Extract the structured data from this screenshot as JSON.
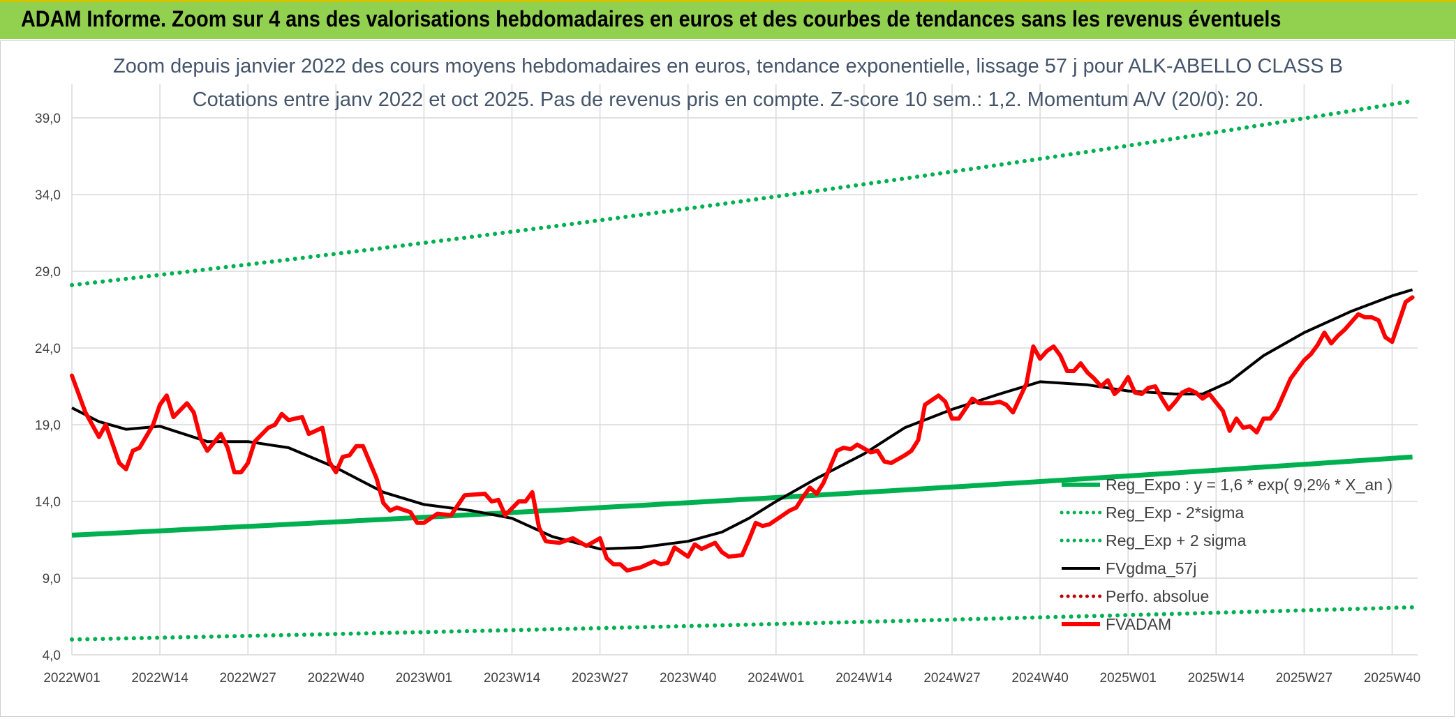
{
  "banner": {
    "title": "ADAM Informe. Zoom sur 4 ans des valorisations hebdomadaires en euros et des courbes de tendances sans les revenus éventuels"
  },
  "colors": {
    "banner_bg": "#92d050",
    "reg_green": "#00b050",
    "price_red": "#ff0000",
    "ma_black": "#000000",
    "perf_red": "#c00000",
    "grid": "#d9d9d9"
  },
  "chart_data": {
    "type": "line",
    "title_line1": "Zoom depuis janvier 2022 des cours moyens hebdomadaires en euros, tendance exponentielle, lissage 57 j pour ALK-ABELLO CLASS B",
    "title_line2": "Cotations entre janv 2022 et oct 2025. Pas de revenus pris en compte. Z-score 10 sem.: 1,2. Momentum A/V (20/0): 20.",
    "ylim": [
      4,
      40
    ],
    "yticks": [
      4,
      9,
      14,
      19,
      24,
      29,
      34,
      39
    ],
    "ytick_labels": [
      "4,0",
      "9,0",
      "14,0",
      "19,0",
      "24,0",
      "29,0",
      "34,0",
      "39,0"
    ],
    "week_count": 199,
    "xtick_index": [
      0,
      13,
      26,
      39,
      52,
      65,
      78,
      91,
      104,
      117,
      130,
      143,
      156,
      169,
      182,
      195
    ],
    "xtick_labels": [
      "2022W01",
      "2022W14",
      "2022W27",
      "2022W40",
      "2023W01",
      "2023W14",
      "2023W27",
      "2023W40",
      "2024W01",
      "2024W14",
      "2024W27",
      "2024W40",
      "2025W01",
      "2025W14",
      "2025W27",
      "2025W40"
    ],
    "legend": [
      {
        "label": "Reg_Expo : y = 1,6 * exp( 9,2% *  X_an )",
        "style": "solid",
        "color": "#00b050"
      },
      {
        "label": "Reg_Exp - 2*sigma",
        "style": "dotted",
        "color": "#00b050"
      },
      {
        "label": "Reg_Exp + 2 sigma",
        "style": "dotted",
        "color": "#00b050"
      },
      {
        "label": "FVgdma_57j",
        "style": "solid",
        "color": "#000000"
      },
      {
        "label": "Perfo. absolue",
        "style": "dotted",
        "color": "#c00000"
      },
      {
        "label": "FVADAM",
        "style": "solid",
        "color": "#ff0000"
      }
    ],
    "series": [
      {
        "name": "Reg_Expo",
        "type": "trend",
        "start": 11.8,
        "end": 16.9
      },
      {
        "name": "Reg_Exp + 2 sigma",
        "type": "trend",
        "start": 28.1,
        "end": 40.1
      },
      {
        "name": "Reg_Exp - 2*sigma",
        "type": "trend",
        "start": 5.0,
        "end": 7.1
      },
      {
        "name": "FVgdma_57j",
        "type": "keyframes",
        "points": [
          [
            0,
            20.1
          ],
          [
            4,
            19.2
          ],
          [
            8,
            18.7
          ],
          [
            13,
            18.9
          ],
          [
            20,
            17.9
          ],
          [
            26,
            17.9
          ],
          [
            32,
            17.5
          ],
          [
            39,
            16.2
          ],
          [
            46,
            14.6
          ],
          [
            52,
            13.8
          ],
          [
            59,
            13.4
          ],
          [
            65,
            12.9
          ],
          [
            71,
            11.7
          ],
          [
            78,
            10.9
          ],
          [
            84,
            11.0
          ],
          [
            91,
            11.4
          ],
          [
            96,
            12.0
          ],
          [
            100,
            12.9
          ],
          [
            104,
            14.0
          ],
          [
            110,
            15.5
          ],
          [
            117,
            17.1
          ],
          [
            123,
            18.8
          ],
          [
            130,
            20.0
          ],
          [
            137,
            21.0
          ],
          [
            143,
            21.8
          ],
          [
            150,
            21.6
          ],
          [
            156,
            21.2
          ],
          [
            163,
            21.0
          ],
          [
            167,
            21.0
          ],
          [
            171,
            21.8
          ],
          [
            176,
            23.5
          ],
          [
            182,
            25.0
          ],
          [
            189,
            26.4
          ],
          [
            195,
            27.4
          ],
          [
            198,
            27.8
          ]
        ]
      },
      {
        "name": "FVADAM",
        "type": "keyframes",
        "points": [
          [
            0,
            22.2
          ],
          [
            2,
            19.8
          ],
          [
            4,
            18.2
          ],
          [
            5,
            19.0
          ],
          [
            7,
            16.5
          ],
          [
            8,
            16.1
          ],
          [
            9,
            17.3
          ],
          [
            10,
            17.5
          ],
          [
            12,
            19.0
          ],
          [
            13,
            20.3
          ],
          [
            14,
            20.9
          ],
          [
            15,
            19.5
          ],
          [
            17,
            20.4
          ],
          [
            18,
            19.8
          ],
          [
            19,
            18.1
          ],
          [
            20,
            17.3
          ],
          [
            22,
            18.4
          ],
          [
            23,
            17.5
          ],
          [
            24,
            15.9
          ],
          [
            25,
            15.9
          ],
          [
            26,
            16.5
          ],
          [
            27,
            17.9
          ],
          [
            29,
            18.8
          ],
          [
            30,
            19.0
          ],
          [
            31,
            19.7
          ],
          [
            32,
            19.3
          ],
          [
            34,
            19.5
          ],
          [
            35,
            18.4
          ],
          [
            37,
            18.8
          ],
          [
            38,
            16.6
          ],
          [
            39,
            15.9
          ],
          [
            40,
            16.9
          ],
          [
            41,
            17.0
          ],
          [
            42,
            17.6
          ],
          [
            43,
            17.6
          ],
          [
            45,
            15.5
          ],
          [
            46,
            13.9
          ],
          [
            47,
            13.4
          ],
          [
            48,
            13.6
          ],
          [
            50,
            13.3
          ],
          [
            51,
            12.6
          ],
          [
            52,
            12.6
          ],
          [
            54,
            13.2
          ],
          [
            56,
            13.1
          ],
          [
            58,
            14.4
          ],
          [
            61,
            14.5
          ],
          [
            62,
            14.0
          ],
          [
            63,
            14.1
          ],
          [
            64,
            13.1
          ],
          [
            66,
            14.0
          ],
          [
            67,
            14.0
          ],
          [
            68,
            14.6
          ],
          [
            69,
            12.3
          ],
          [
            70,
            11.4
          ],
          [
            72,
            11.3
          ],
          [
            74,
            11.6
          ],
          [
            76,
            11.1
          ],
          [
            78,
            11.6
          ],
          [
            79,
            10.3
          ],
          [
            80,
            9.9
          ],
          [
            81,
            9.9
          ],
          [
            82,
            9.5
          ],
          [
            84,
            9.7
          ],
          [
            86,
            10.1
          ],
          [
            87,
            9.9
          ],
          [
            88,
            10.0
          ],
          [
            89,
            11.0
          ],
          [
            91,
            10.4
          ],
          [
            92,
            11.2
          ],
          [
            93,
            10.9
          ],
          [
            95,
            11.3
          ],
          [
            96,
            10.7
          ],
          [
            97,
            10.4
          ],
          [
            99,
            10.5
          ],
          [
            100,
            11.5
          ],
          [
            101,
            12.6
          ],
          [
            102,
            12.4
          ],
          [
            103,
            12.5
          ],
          [
            105,
            13.1
          ],
          [
            106,
            13.4
          ],
          [
            107,
            13.6
          ],
          [
            108,
            14.3
          ],
          [
            109,
            14.9
          ],
          [
            110,
            14.5
          ],
          [
            111,
            15.2
          ],
          [
            113,
            17.3
          ],
          [
            114,
            17.5
          ],
          [
            115,
            17.4
          ],
          [
            116,
            17.7
          ],
          [
            118,
            17.2
          ],
          [
            119,
            17.3
          ],
          [
            120,
            16.6
          ],
          [
            121,
            16.5
          ],
          [
            123,
            17.0
          ],
          [
            124,
            17.3
          ],
          [
            125,
            18.0
          ],
          [
            126,
            20.3
          ],
          [
            128,
            20.9
          ],
          [
            129,
            20.5
          ],
          [
            130,
            19.4
          ],
          [
            131,
            19.4
          ],
          [
            133,
            20.7
          ],
          [
            134,
            20.4
          ],
          [
            136,
            20.4
          ],
          [
            137,
            20.5
          ],
          [
            138,
            20.3
          ],
          [
            139,
            19.8
          ],
          [
            141,
            21.7
          ],
          [
            142,
            24.1
          ],
          [
            143,
            23.3
          ],
          [
            144,
            23.8
          ],
          [
            145,
            24.1
          ],
          [
            146,
            23.5
          ],
          [
            147,
            22.5
          ],
          [
            148,
            22.5
          ],
          [
            149,
            23.0
          ],
          [
            150,
            22.4
          ],
          [
            151,
            22.0
          ],
          [
            152,
            21.5
          ],
          [
            153,
            21.9
          ],
          [
            154,
            21.0
          ],
          [
            155,
            21.4
          ],
          [
            156,
            22.1
          ],
          [
            157,
            21.1
          ],
          [
            158,
            21.0
          ],
          [
            159,
            21.4
          ],
          [
            160,
            21.5
          ],
          [
            161,
            20.7
          ],
          [
            162,
            20.0
          ],
          [
            163,
            20.5
          ],
          [
            164,
            21.1
          ],
          [
            165,
            21.3
          ],
          [
            166,
            21.1
          ],
          [
            167,
            20.7
          ],
          [
            168,
            21.0
          ],
          [
            170,
            19.9
          ],
          [
            171,
            18.6
          ],
          [
            172,
            19.4
          ],
          [
            173,
            18.8
          ],
          [
            174,
            18.9
          ],
          [
            175,
            18.5
          ],
          [
            176,
            19.4
          ],
          [
            177,
            19.4
          ],
          [
            178,
            20.0
          ],
          [
            180,
            22.0
          ],
          [
            182,
            23.2
          ],
          [
            183,
            23.6
          ],
          [
            184,
            24.2
          ],
          [
            185,
            25.0
          ],
          [
            186,
            24.3
          ],
          [
            187,
            24.8
          ],
          [
            188,
            25.2
          ],
          [
            190,
            26.2
          ],
          [
            191,
            26.0
          ],
          [
            192,
            26.0
          ],
          [
            193,
            25.8
          ],
          [
            194,
            24.7
          ],
          [
            195,
            24.4
          ],
          [
            196,
            25.7
          ],
          [
            197,
            27.0
          ],
          [
            198,
            27.3
          ]
        ]
      }
    ]
  }
}
